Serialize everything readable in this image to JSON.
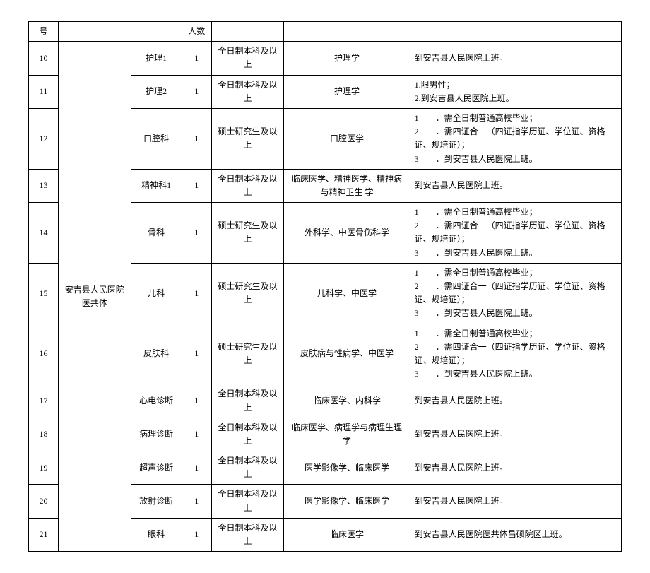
{
  "header": {
    "num": "号",
    "count": "人数"
  },
  "org": "安吉县人民医院 医共体",
  "rows": [
    {
      "num": "10",
      "post": "护理1",
      "count": "1",
      "edu": "全日制本科及以上",
      "major": "护理学",
      "note_lines": [
        "到安吉县人民医院上班。"
      ]
    },
    {
      "num": "11",
      "post": "护理2",
      "count": "1",
      "edu": "全日制本科及以上",
      "major": "护理学",
      "note_lines": [
        "1.限男性；",
        "2.到安吉县人民医院上班。"
      ]
    },
    {
      "num": "12",
      "post": "口腔科",
      "count": "1",
      "edu": "硕士研究生及以上",
      "major": "口腔医学",
      "note_lines": [
        "1　　．需全日制普通高校毕业；",
        "2　　．需四证合一（四证指学历证、学位证、资格证、规培证）；",
        "3　　．到安吉县人民医院上班。"
      ]
    },
    {
      "num": "13",
      "post": "精神科1",
      "count": "1",
      "edu": "全日制本科及以上",
      "major": "临床医学、精神医学、精神病与精神卫生 学",
      "note_lines": [
        "到安吉县人民医院上班。"
      ]
    },
    {
      "num": "14",
      "post": "骨科",
      "count": "1",
      "edu": "硕士研究生及以上",
      "major": "外科学、中医骨伤科学",
      "note_lines": [
        "1　　．需全日制普通高校毕业；",
        "2　　．需四证合一（四证指学历证、学位证、资格证、规培证）；",
        "3　　．到安吉县人民医院上班。"
      ]
    },
    {
      "num": "15",
      "post": "儿科",
      "count": "1",
      "edu": "硕士研究生及以上",
      "major": "儿科学、中医学",
      "note_lines": [
        "1　　．需全日制普通高校毕业；",
        "2　　．需四证合一（四证指学历证、学位证、资格证、规培证）；",
        "3　　．到安吉县人民医院上班。"
      ]
    },
    {
      "num": "16",
      "post": "皮肤科",
      "count": "1",
      "edu": "硕士研究生及以上",
      "major": "皮肤病与性病学、中医学",
      "note_lines": [
        "1　　．需全日制普通高校毕业；",
        "2　　．需四证合一（四证指学历证、学位证、资格证、规培证）；",
        "3　　．到安吉县人民医院上班。"
      ]
    },
    {
      "num": "17",
      "post": "心电诊断",
      "count": "1",
      "edu": "全日制本科及以上",
      "major": "临床医学、内科学",
      "note_lines": [
        "到安吉县人民医院上班。"
      ]
    },
    {
      "num": "18",
      "post": "病理诊断",
      "count": "1",
      "edu": "全日制本科及以上",
      "major": "临床医学、病理学与病理生理学",
      "note_lines": [
        "到安吉县人民医院上班。"
      ]
    },
    {
      "num": "19",
      "post": "超声诊断",
      "count": "1",
      "edu": "全日制本科及以上",
      "major": "医学影像学、临床医学",
      "note_lines": [
        "到安吉县人民医院上班。"
      ]
    },
    {
      "num": "20",
      "post": "放射诊断",
      "count": "1",
      "edu": "全日制本科及以上",
      "major": "医学影像学、临床医学",
      "note_lines": [
        "到安吉县人民医院上班。"
      ]
    },
    {
      "num": "21",
      "post": "眼科",
      "count": "1",
      "edu": "全日制本科及以上",
      "major": "临床医学",
      "note_lines": [
        "到安吉县人民医院医共体昌硕院区上班。"
      ]
    }
  ]
}
